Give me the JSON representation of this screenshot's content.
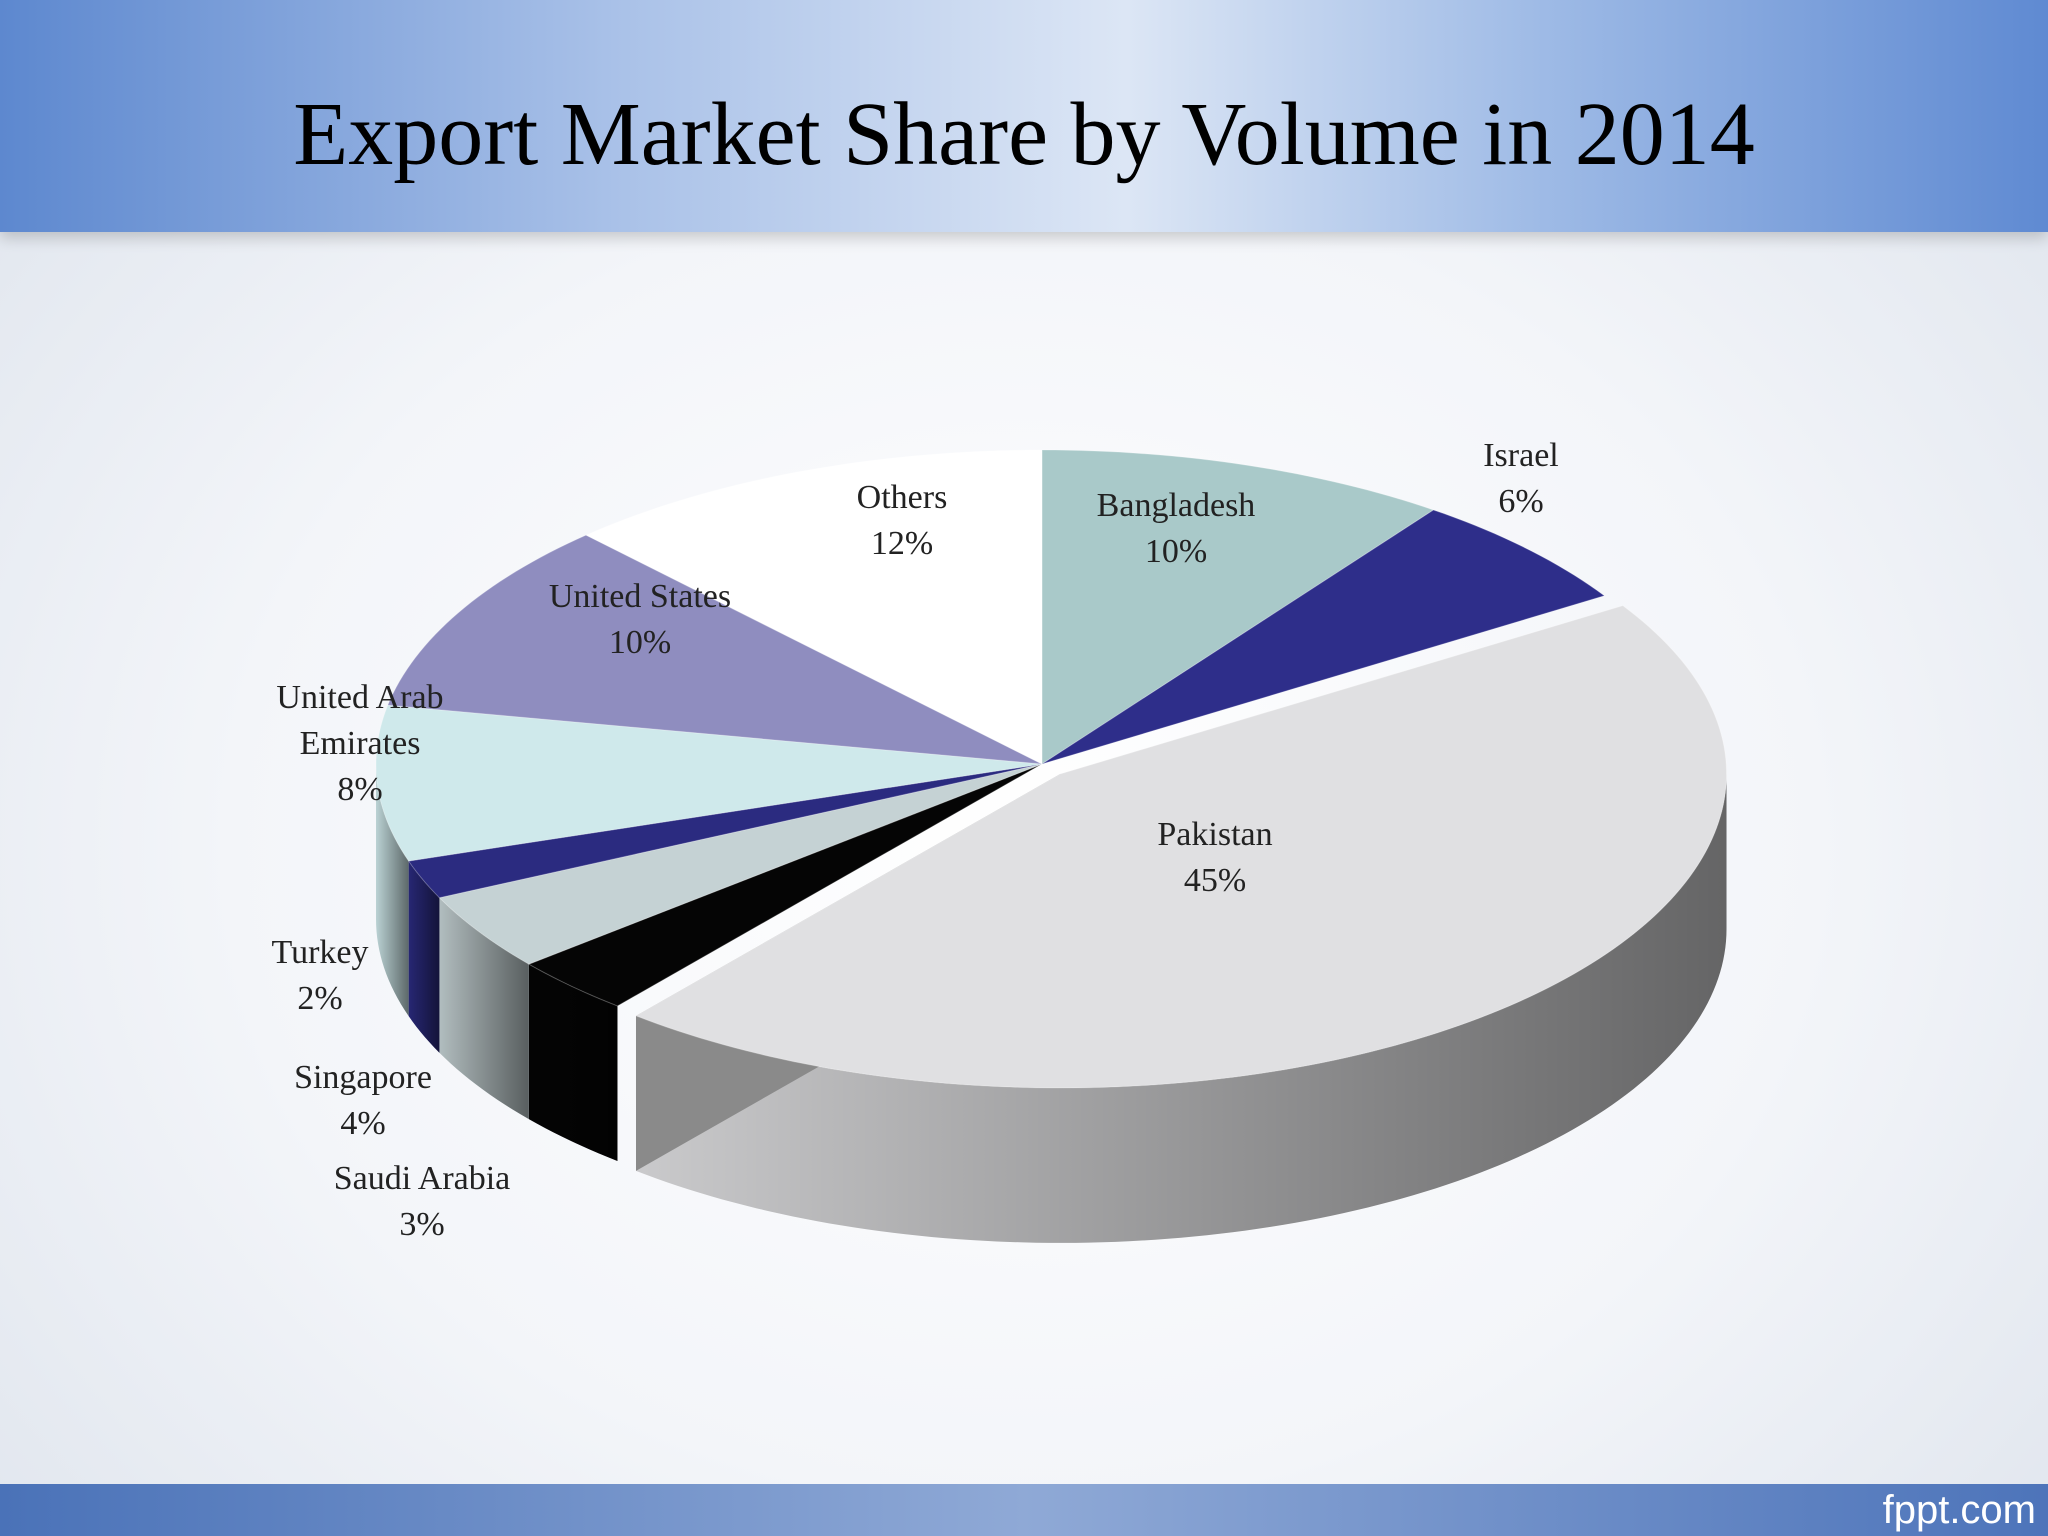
{
  "chart_data": {
    "type": "pie3d",
    "title": "Export Market Share by Volume in 2014",
    "categories": [
      "Bangladesh",
      "Israel",
      "Pakistan",
      "Saudi Arabia",
      "Singapore",
      "Turkey",
      "United Arab Emirates",
      "United States",
      "Others"
    ],
    "values": [
      10,
      6,
      45,
      3,
      4,
      2,
      8,
      10,
      12
    ],
    "value_labels": [
      "10%",
      "6%",
      "45%",
      "3%",
      "4%",
      "2%",
      "8%",
      "10%",
      "12%"
    ],
    "colors": [
      "#a9c9c9",
      "#2e2e8a",
      "#e0e0e2",
      "#050505",
      "#c5d2d4",
      "#2b2b80",
      "#cfe9eb",
      "#8f8dbf",
      "#ffffff"
    ]
  },
  "footer": "fppt.com"
}
